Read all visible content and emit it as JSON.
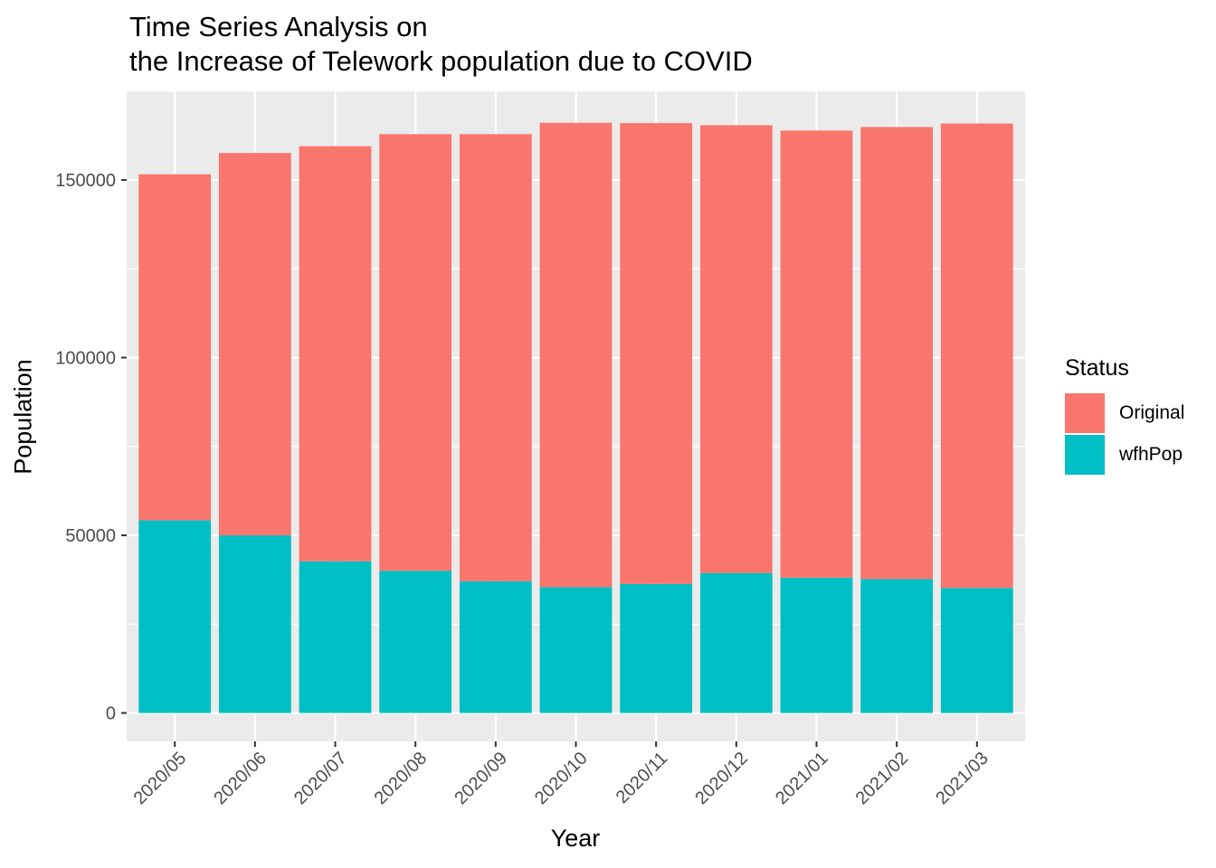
{
  "chart_data": {
    "type": "bar",
    "stacked": true,
    "title": [
      "Time Series Analysis on",
      "the Increase of Telework population due to COVID"
    ],
    "xlabel": "Year",
    "ylabel": "Population",
    "categories": [
      "2020/05",
      "2020/06",
      "2020/07",
      "2020/08",
      "2020/09",
      "2020/10",
      "2020/11",
      "2020/12",
      "2021/01",
      "2021/02",
      "2021/03"
    ],
    "series": [
      {
        "name": "wfhPop",
        "color": "#00BFC4",
        "values": [
          54200,
          50000,
          42700,
          40000,
          37100,
          35400,
          36300,
          39400,
          38100,
          37700,
          35200
        ]
      },
      {
        "name": "Original",
        "color": "#F8766D",
        "values": [
          97400,
          107600,
          116800,
          122900,
          125800,
          130700,
          129700,
          126000,
          125800,
          127200,
          130700
        ]
      }
    ],
    "ylim": [
      -8000,
      175200
    ],
    "yticks": [
      0,
      50000,
      100000,
      150000
    ],
    "ytick_labels": [
      "0",
      "50000",
      "100000",
      "150000"
    ],
    "legend_title": "Status",
    "legend_position": "right",
    "legend_order": [
      "Original",
      "wfhPop"
    ],
    "grid": true,
    "panel_background": "#EBEBEB",
    "grid_color": "#FFFFFF"
  }
}
